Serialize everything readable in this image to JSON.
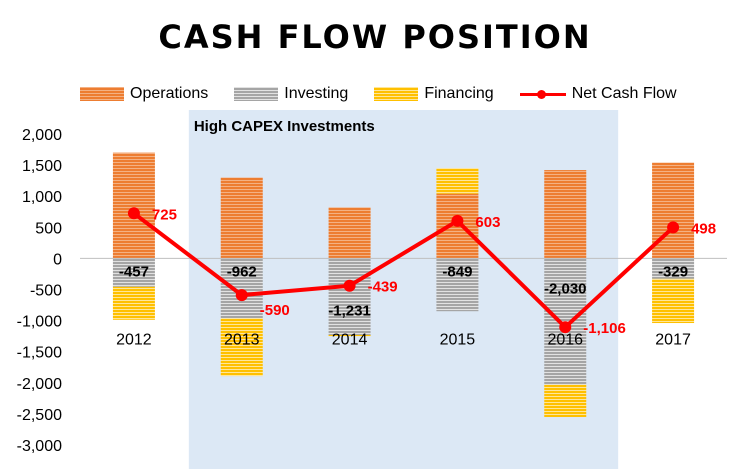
{
  "chart_data": {
    "type": "bar",
    "stacked": true,
    "title": "CASH FLOW POSITION",
    "categories": [
      "2012",
      "2013",
      "2014",
      "2015",
      "2016",
      "2017"
    ],
    "series": [
      {
        "name": "Operations",
        "kind": "bar",
        "color": "#ed7d31",
        "values": [
          1700,
          1300,
          820,
          1040,
          1420,
          1540
        ]
      },
      {
        "name": "Investing",
        "kind": "bar",
        "color": "#a5a5a5",
        "values": [
          -457,
          -962,
          -1231,
          -849,
          -2030,
          -329
        ]
      },
      {
        "name": "Financing",
        "kind": "bar",
        "color": "#ffc000",
        "values": [
          -530,
          -930,
          -20,
          410,
          -520,
          -710
        ]
      },
      {
        "name": "Net Cash Flow",
        "kind": "line",
        "color": "#ff0000",
        "values": [
          725,
          -590,
          -439,
          603,
          -1106,
          498
        ]
      }
    ],
    "investing_labels": [
      "-457",
      "-962",
      "-1,231",
      "-849",
      "-2,030",
      "-329"
    ],
    "net_labels": [
      "725",
      "-590",
      "-439",
      "603",
      "-1,106",
      "498"
    ],
    "y_ticks": [
      "2,000",
      "1,500",
      "1,000",
      "500",
      "0",
      "-500",
      "-1,000",
      "-1,500",
      "-2,000",
      "-2,500",
      "-3,000"
    ],
    "ylim": [
      -3000,
      2000
    ],
    "y_tick_step": 500,
    "xlabel": "",
    "ylabel": "",
    "grid": false,
    "legend_position": "top",
    "highlight": {
      "label": "High CAPEX Investments",
      "from_category": "2013",
      "to_category": "2016",
      "color": "#dce8f5"
    }
  }
}
